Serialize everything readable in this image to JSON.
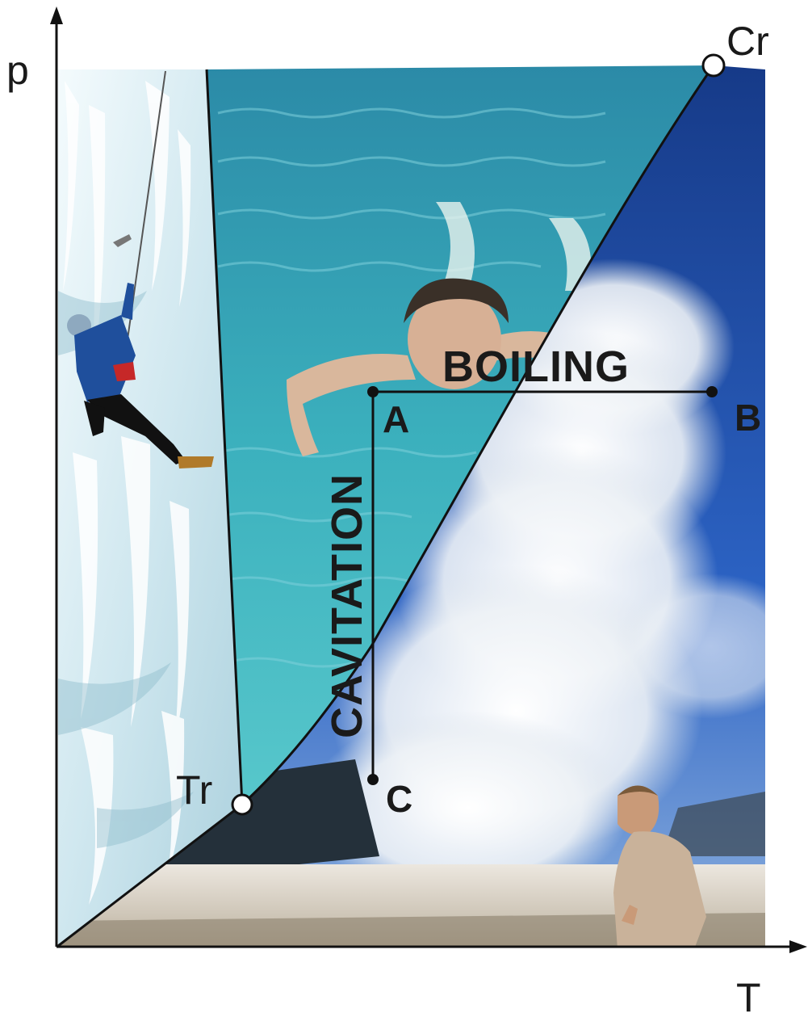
{
  "axes": {
    "y_label": "p",
    "x_label": "T"
  },
  "points": {
    "triple": "Tr",
    "critical": "Cr",
    "a": "A",
    "b": "B",
    "c": "C"
  },
  "processes": {
    "horizontal": "BOILING",
    "vertical": "CAVITATION"
  },
  "regions": {
    "solid": "ice climber on frozen waterfall",
    "liquid": "swimmer in water",
    "vapor": "geyser steam with person"
  },
  "colors": {
    "ice_light": "#eef7fb",
    "ice_shadow": "#9cc6d6",
    "water_top": "#2f95ae",
    "water_bottom": "#4fc3c9",
    "sky_top": "#1c3f8f",
    "sky_bottom": "#2e6fd0",
    "steam": "#f4f6f8",
    "ground": "#d9d2c4",
    "line": "#111111"
  }
}
